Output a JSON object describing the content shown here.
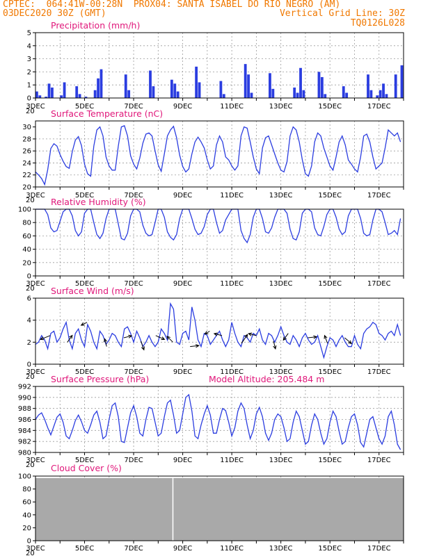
{
  "header": {
    "source": "CPTEC:",
    "coords": "064:41W-00:28N",
    "station": "PROX04: SANTA ISABEL DO RIO NEGRO (AM)",
    "run": "03DEC2020 30Z (GMT)",
    "grid_note": "Vertical Grid Line: 30Z",
    "model": "TQ0126L028"
  },
  "x_axis": {
    "start": "2020-12-03T00Z",
    "days": 15,
    "tick_labels": [
      "3DEC",
      "5DEC",
      "7DEC",
      "9DEC",
      "11DEC",
      "13DEC",
      "15DEC",
      "17DEC"
    ],
    "year_fragment": "20"
  },
  "colors": {
    "series": "#2b3de0",
    "title": "#e0177a",
    "header": "#f07800",
    "cloud": "#a9a9a9"
  },
  "chart_data": [
    {
      "id": "precip",
      "type": "bar",
      "title": "Precipitation (mm/h)",
      "ylim": [
        0,
        5
      ],
      "yticks": [
        0,
        1,
        2,
        3,
        4,
        5
      ],
      "samples_per_day": 8,
      "values": [
        0.5,
        0.2,
        0,
        0.1,
        1.1,
        0.8,
        0,
        0,
        0.2,
        1.2,
        0,
        0,
        0,
        0.9,
        0.3,
        0,
        0.1,
        0,
        0,
        0.6,
        1.5,
        2.2,
        0,
        0,
        0,
        0,
        0,
        0,
        0,
        1.8,
        0.6,
        0,
        0,
        0,
        0,
        0,
        0,
        2.1,
        0.9,
        0,
        0,
        0,
        0,
        0,
        1.4,
        1.1,
        0.5,
        0,
        0,
        0,
        0,
        0,
        2.4,
        1.2,
        0,
        0,
        0,
        0,
        0,
        0,
        1.3,
        0.3,
        0,
        0,
        0,
        0,
        0,
        0,
        2.6,
        1.8,
        0.4,
        0,
        0,
        0,
        0,
        0,
        1.9,
        0.7,
        0,
        0,
        0,
        0,
        0,
        0,
        0.8,
        0.4,
        2.3,
        0.6,
        0,
        0,
        0,
        0,
        2.0,
        1.6,
        0.3,
        0,
        0,
        0,
        0,
        0,
        0.9,
        0.4,
        0,
        0,
        0,
        0,
        0,
        0,
        1.8,
        0.6,
        0,
        0.2,
        0.6,
        1.1,
        0.3,
        0,
        0,
        1.8,
        0,
        2.5
      ]
    },
    {
      "id": "temp",
      "type": "line",
      "title": "Surface Temperature (nC)",
      "ylim": [
        20,
        31
      ],
      "yticks": [
        20,
        22,
        24,
        26,
        28,
        30
      ],
      "samples_per_day": 8,
      "values": [
        22.5,
        22.0,
        21.4,
        20.4,
        22.9,
        26.4,
        27.2,
        26.8,
        25.4,
        24.3,
        23.4,
        23.1,
        25.9,
        27.8,
        28.4,
        26.9,
        23.8,
        22.2,
        21.8,
        26.8,
        29.5,
        30.0,
        28.5,
        25.0,
        23.5,
        22.8,
        22.8,
        26.8,
        30.0,
        30.2,
        28.5,
        25.2,
        23.8,
        23.0,
        24.8,
        27.3,
        28.8,
        29.0,
        28.5,
        26.0,
        23.7,
        22.6,
        25.5,
        28.5,
        29.5,
        30.1,
        28.2,
        25.3,
        23.4,
        22.5,
        23.0,
        25.5,
        27.5,
        28.3,
        27.5,
        26.5,
        24.5,
        23.0,
        23.5,
        27.0,
        28.5,
        27.5,
        25.0,
        24.5,
        23.5,
        22.8,
        23.5,
        28.5,
        30.0,
        29.8,
        27.5,
        25.0,
        23.0,
        22.2,
        26.5,
        28.2,
        28.5,
        27.0,
        25.5,
        24.0,
        22.8,
        22.5,
        24.2,
        28.5,
        30.0,
        29.5,
        27.5,
        24.5,
        22.2,
        21.8,
        23.5,
        27.5,
        29.0,
        28.5,
        26.5,
        25.0,
        23.5,
        22.8,
        25.0,
        27.5,
        28.5,
        27.0,
        24.5,
        23.8,
        23.0,
        22.5,
        25.0,
        28.5,
        28.8,
        27.5,
        25.0,
        23.0,
        23.5,
        24.0,
        26.5,
        29.5,
        29.0,
        28.5,
        29.0,
        27.5
      ]
    },
    {
      "id": "rh",
      "type": "line",
      "title": "Relative Humidity (%)",
      "ylim": [
        0,
        100
      ],
      "yticks": [
        0,
        20,
        40,
        60,
        80,
        100
      ],
      "samples_per_day": 8,
      "values": [
        100,
        100,
        100,
        100,
        92,
        72,
        66,
        68,
        82,
        96,
        100,
        100,
        90,
        68,
        60,
        66,
        94,
        100,
        100,
        80,
        62,
        56,
        64,
        86,
        100,
        100,
        100,
        78,
        56,
        54,
        64,
        90,
        100,
        100,
        96,
        76,
        64,
        60,
        62,
        80,
        100,
        100,
        88,
        66,
        58,
        54,
        62,
        86,
        100,
        100,
        100,
        86,
        70,
        62,
        64,
        74,
        92,
        100,
        100,
        80,
        64,
        68,
        84,
        92,
        100,
        100,
        100,
        68,
        56,
        50,
        62,
        88,
        100,
        100,
        86,
        66,
        64,
        72,
        88,
        100,
        100,
        100,
        94,
        70,
        56,
        54,
        66,
        94,
        100,
        100,
        96,
        72,
        62,
        60,
        74,
        92,
        100,
        100,
        88,
        70,
        62,
        66,
        90,
        100,
        100,
        100,
        86,
        64,
        60,
        62,
        84,
        100,
        100,
        96,
        80,
        62,
        64,
        68,
        62,
        86
      ]
    },
    {
      "id": "wind",
      "type": "line",
      "title": "Surface Wind (m/s)",
      "ylim": [
        0,
        6
      ],
      "yticks": [
        0,
        2,
        4,
        6
      ],
      "samples_per_day": 8,
      "values": [
        1.8,
        2.0,
        2.6,
        2.2,
        1.4,
        2.8,
        3.0,
        2.0,
        2.4,
        3.2,
        3.8,
        2.2,
        1.4,
        2.8,
        3.2,
        2.2,
        1.6,
        3.6,
        3.0,
        2.0,
        1.4,
        3.0,
        2.6,
        1.8,
        2.2,
        2.8,
        2.6,
        2.0,
        1.6,
        3.2,
        3.4,
        2.8,
        2.0,
        3.0,
        2.4,
        1.6,
        2.0,
        2.6,
        2.0,
        1.6,
        2.0,
        3.2,
        2.8,
        2.2,
        5.5,
        5.0,
        2.0,
        1.8,
        2.8,
        3.0,
        2.2,
        5.2,
        4.0,
        2.2,
        1.6,
        2.8,
        2.6,
        1.8,
        2.2,
        2.6,
        3.0,
        2.2,
        1.6,
        2.2,
        3.8,
        2.8,
        2.0,
        1.6,
        2.6,
        2.4,
        2.0,
        2.8,
        2.6,
        3.2,
        2.2,
        1.8,
        2.8,
        2.6,
        2.0,
        2.6,
        3.4,
        2.6,
        2.0,
        1.8,
        2.6,
        2.2,
        1.6,
        2.4,
        2.8,
        2.2,
        1.8,
        2.0,
        2.6,
        1.6,
        0.6,
        1.6,
        2.4,
        2.2,
        1.6,
        2.2,
        2.6,
        2.0,
        1.6,
        1.6,
        2.6,
        1.8,
        1.4,
        2.8,
        3.2,
        3.4,
        3.8,
        3.6,
        2.8,
        2.6,
        2.2,
        2.8,
        3.0,
        2.6,
        3.6,
        2.6
      ],
      "arrows": [
        [
          0.6,
          2.6,
          -1.0,
          -0.4
        ],
        [
          1.3,
          2.0,
          0.5,
          0.7
        ],
        [
          2.1,
          3.8,
          -0.6,
          -0.3
        ],
        [
          2.9,
          1.6,
          -0.2,
          0.8
        ],
        [
          3.6,
          2.4,
          0.8,
          0.2
        ],
        [
          4.3,
          2.1,
          0.3,
          -0.9
        ],
        [
          4.9,
          2.6,
          0.9,
          -0.4
        ],
        [
          5.6,
          2.0,
          -0.6,
          0.6
        ],
        [
          6.3,
          1.6,
          0.9,
          0.1
        ],
        [
          7.1,
          3.0,
          -0.5,
          -0.3
        ],
        [
          7.6,
          2.6,
          -0.8,
          0.2
        ],
        [
          8.4,
          1.9,
          0.6,
          0.9
        ],
        [
          9.0,
          2.6,
          -0.8,
          0.2
        ],
        [
          9.7,
          2.1,
          0.2,
          -0.8
        ],
        [
          10.3,
          2.8,
          -0.5,
          -0.7
        ],
        [
          11.1,
          2.4,
          0.9,
          0.1
        ],
        [
          11.9,
          1.9,
          -0.3,
          0.8
        ],
        [
          12.6,
          2.4,
          0.7,
          -0.6
        ]
      ]
    },
    {
      "id": "pres",
      "type": "line",
      "title": "Surface Pressure (hPa)",
      "ylim": [
        980,
        992
      ],
      "yticks": [
        980,
        982,
        984,
        986,
        988,
        990,
        992
      ],
      "samples_per_day": 8,
      "values": [
        986.0,
        986.8,
        987.2,
        986.0,
        984.5,
        983.2,
        984.8,
        986.4,
        987.0,
        985.5,
        983.0,
        982.5,
        984.0,
        985.8,
        986.8,
        985.6,
        984.0,
        983.5,
        985.0,
        986.8,
        987.5,
        985.5,
        982.5,
        983.0,
        986.0,
        988.5,
        989.0,
        986.5,
        982.0,
        981.8,
        984.5,
        987.2,
        988.5,
        986.5,
        983.5,
        983.0,
        986.0,
        988.2,
        988.0,
        985.5,
        983.0,
        983.5,
        986.5,
        989.0,
        989.5,
        986.8,
        983.5,
        984.0,
        987.0,
        990.0,
        990.5,
        987.5,
        983.0,
        982.5,
        985.0,
        987.0,
        988.5,
        986.8,
        983.5,
        983.5,
        986.0,
        988.0,
        987.6,
        985.5,
        983.0,
        984.5,
        987.5,
        989.0,
        988.0,
        985.0,
        982.5,
        984.0,
        987.0,
        988.2,
        986.5,
        983.5,
        982.2,
        983.5,
        986.0,
        987.0,
        986.5,
        984.5,
        982.0,
        982.5,
        985.5,
        987.5,
        986.5,
        984.0,
        981.5,
        982.0,
        985.0,
        987.0,
        986.0,
        983.5,
        981.5,
        982.5,
        985.5,
        987.5,
        986.5,
        983.8,
        981.5,
        982.0,
        984.5,
        986.5,
        987.0,
        985.0,
        981.8,
        981.0,
        983.5,
        986.0,
        986.5,
        984.5,
        982.5,
        981.5,
        983.0,
        986.5,
        987.5,
        985.0,
        981.5,
        980.5
      ]
    },
    {
      "id": "cloud",
      "type": "bar",
      "title": "Cloud Cover (%)",
      "ylim": [
        0,
        100
      ],
      "yticks": [
        0,
        20,
        40,
        60,
        80,
        100
      ],
      "level_percent": 97
    }
  ],
  "pressure_note": "Model Altitude: 205.484 m"
}
